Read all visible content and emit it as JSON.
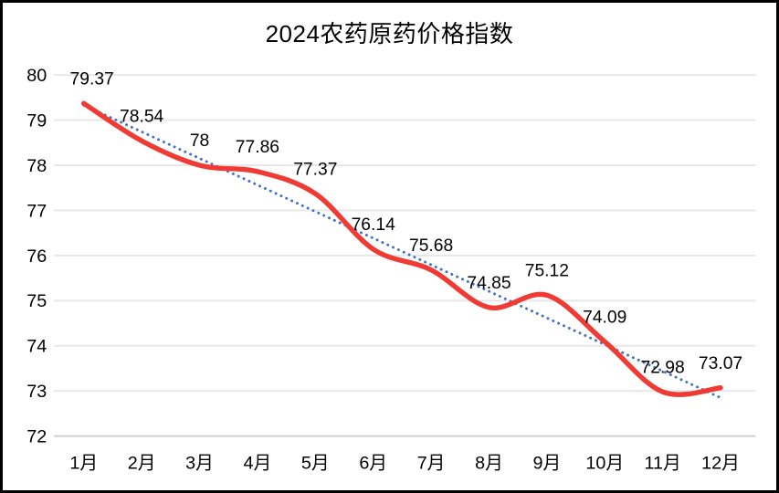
{
  "chart_data": {
    "type": "line",
    "title": "2024农药原药价格指数",
    "categories": [
      "1月",
      "2月",
      "3月",
      "4月",
      "5月",
      "6月",
      "7月",
      "8月",
      "9月",
      "10月",
      "11月",
      "12月"
    ],
    "series": [
      {
        "values": [
          79.37,
          78.54,
          78,
          77.86,
          77.37,
          76.14,
          75.68,
          74.85,
          75.12,
          74.09,
          72.98,
          73.07
        ],
        "labels": [
          "79.37",
          "78.54",
          "78",
          "77.86",
          "77.37",
          "76.14",
          "75.68",
          "74.85",
          "75.12",
          "74.09",
          "72.98",
          "73.07"
        ],
        "color": "#ef3b33",
        "smooth": true
      }
    ],
    "trendline": {
      "type": "linear",
      "style": "dotted",
      "color": "#4472c4",
      "start_value": 79.33,
      "end_value": 72.85
    },
    "xlabel": "",
    "ylabel": "",
    "ylim": [
      72,
      80
    ],
    "yticks": [
      80,
      79,
      78,
      77,
      76,
      75,
      74,
      73,
      72
    ],
    "grid": true,
    "legend": "none",
    "colors": {
      "grid": "#e7e7e7",
      "axis_line": "#d0d0d0",
      "text": "#000000",
      "background": "#ffffff",
      "border": "#000000"
    }
  }
}
